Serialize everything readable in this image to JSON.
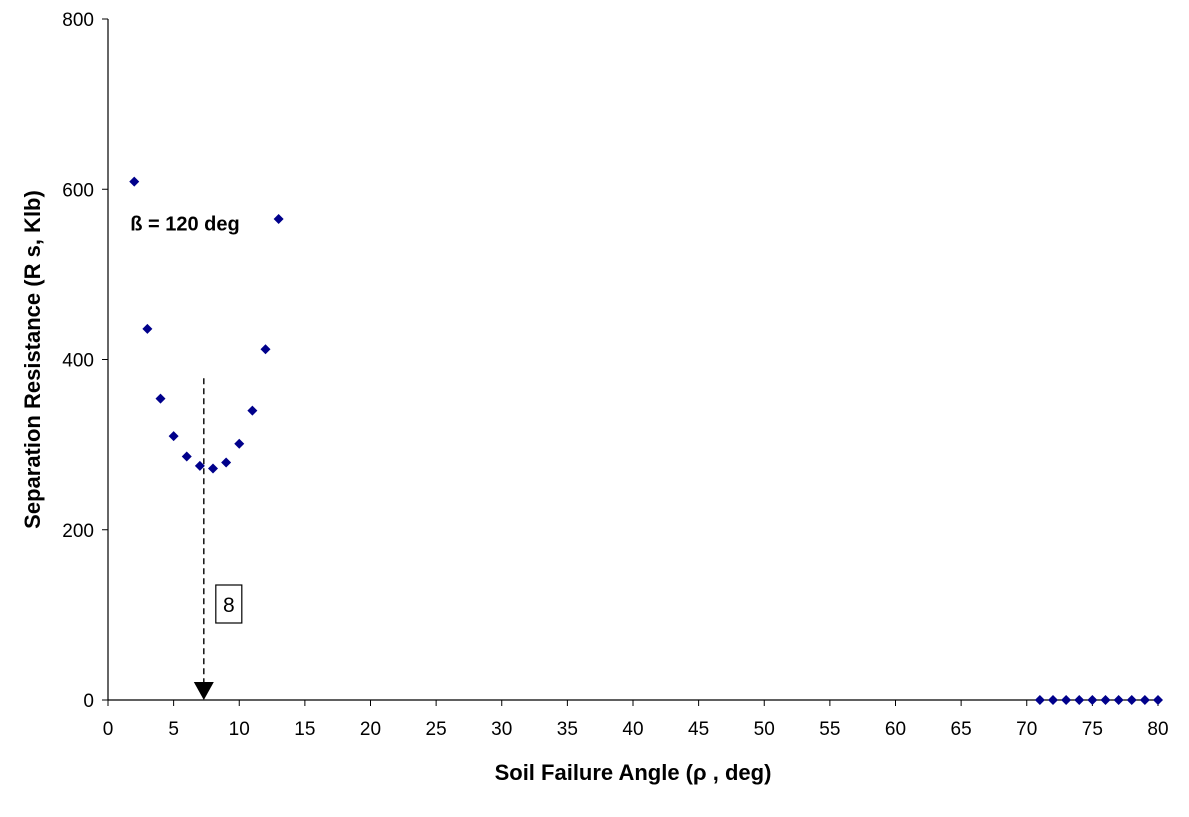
{
  "chart_data": {
    "type": "scatter",
    "xlabel": "Soil Failure Angle (ρ , deg)",
    "ylabel": "Separation Resistance (R s, Klb)",
    "xlim": [
      0,
      80
    ],
    "ylim": [
      0,
      800
    ],
    "x_ticks": [
      "0",
      "5",
      "10",
      "15",
      "20",
      "25",
      "30",
      "35",
      "40",
      "45",
      "50",
      "55",
      "60",
      "65",
      "70",
      "75",
      "80"
    ],
    "y_ticks": [
      "0",
      "200",
      "400",
      "600",
      "800"
    ],
    "grid": false,
    "legend": "none",
    "series": [
      {
        "color": "#00008B",
        "marker": "diamond",
        "points": [
          {
            "x": 2,
            "y": 609
          },
          {
            "x": 3,
            "y": 436
          },
          {
            "x": 4,
            "y": 354
          },
          {
            "x": 5,
            "y": 310
          },
          {
            "x": 6,
            "y": 286
          },
          {
            "x": 7,
            "y": 275
          },
          {
            "x": 8,
            "y": 272
          },
          {
            "x": 9,
            "y": 279
          },
          {
            "x": 10,
            "y": 301
          },
          {
            "x": 11,
            "y": 340
          },
          {
            "x": 12,
            "y": 412
          },
          {
            "x": 13,
            "y": 565
          },
          {
            "x": 71,
            "y": 0
          },
          {
            "x": 72,
            "y": 0
          },
          {
            "x": 73,
            "y": 0
          },
          {
            "x": 74,
            "y": 0
          },
          {
            "x": 75,
            "y": 0
          },
          {
            "x": 76,
            "y": 0
          },
          {
            "x": 77,
            "y": 0
          },
          {
            "x": 78,
            "y": 0
          },
          {
            "x": 79,
            "y": 0
          },
          {
            "x": 80,
            "y": 0
          }
        ]
      }
    ],
    "annotations": [
      {
        "text": "ß = 120 deg",
        "x": 2,
        "y": 560
      }
    ],
    "callout": {
      "text": "8",
      "x": 7.3,
      "y_from": 378,
      "y_to": 0,
      "line_style": "dashed",
      "arrow": "down"
    }
  }
}
